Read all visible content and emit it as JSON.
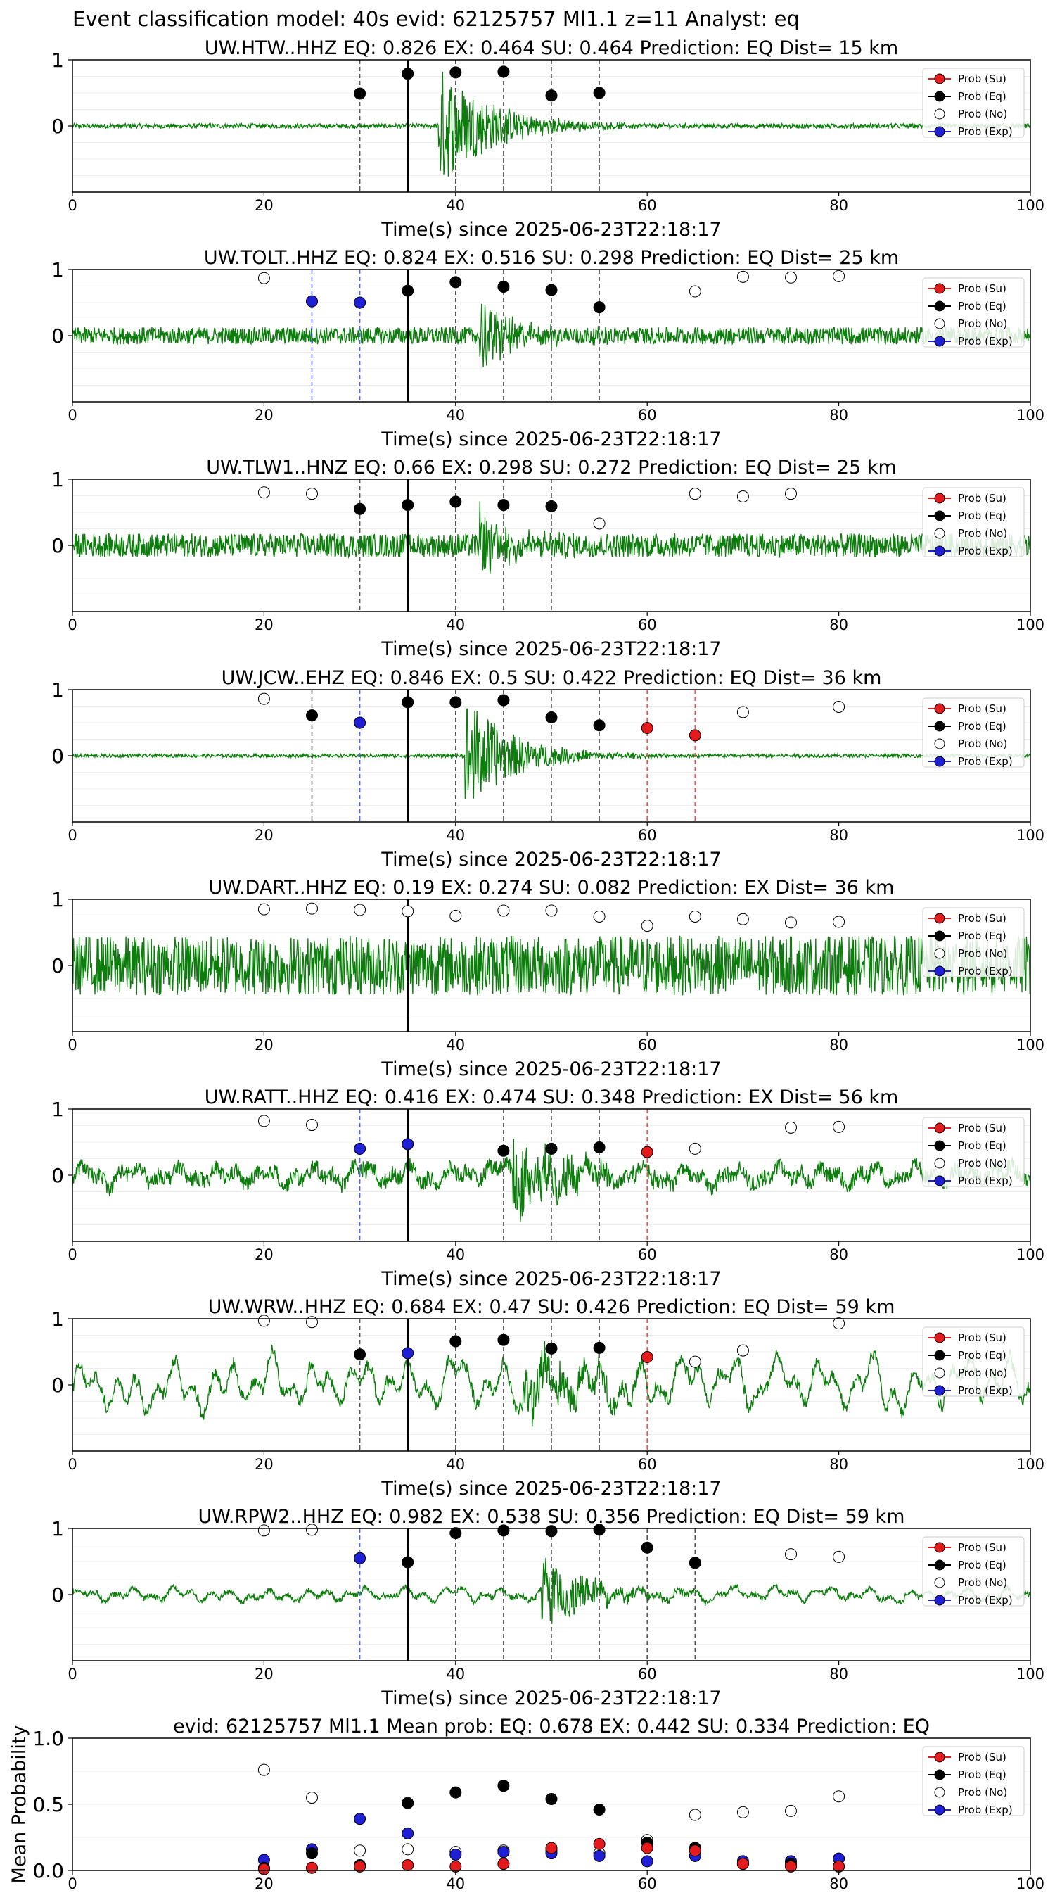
{
  "figure": {
    "suptitle": "Event classification model: 40s evid: 62125757 Ml1.1 z=11 Analyst: eq"
  },
  "legend": {
    "entries": [
      {
        "label": "Prob (Su)",
        "marker_color": "#e41a1c",
        "line": true
      },
      {
        "label": "Prob (Eq)",
        "marker_color": "#000000",
        "line": true
      },
      {
        "label": "Prob (No)",
        "marker_color": "#ffffff",
        "line": false
      },
      {
        "label": "Prob (Exp)",
        "marker_color": "#1f1fd6",
        "line": true
      }
    ]
  },
  "colors": {
    "waveform": "#0a7d0a",
    "su": "#e41a1c",
    "eq": "#000000",
    "no": "#ffffff",
    "exp": "#1f1fd6",
    "pick_line": "#000000"
  },
  "chart_data": [
    {
      "type": "line",
      "title": "UW.HTW..HHZ   EQ: 0.826  EX: 0.464  SU: 0.464   Prediction: EQ    Dist= 15 km",
      "xlabel": "Time(s) since 2025-06-23T22:18:17",
      "ylabel": "",
      "xlim": [
        0,
        100
      ],
      "ylim": [
        -1,
        1
      ],
      "xticks": [
        "0",
        "20",
        "40",
        "60",
        "80",
        "100"
      ],
      "yticks": [
        "1",
        "0"
      ],
      "grid": true,
      "legend_position": "top-right",
      "pick_time": 35,
      "waveform": {
        "noise": 0.035,
        "burst_start": 38.2,
        "burst_amp": 0.95,
        "burst_decay": 5.5,
        "lowfreq": 0,
        "style": "spike"
      },
      "series": [
        {
          "name": "Prob (Su)",
          "x": [],
          "y": []
        },
        {
          "name": "Prob (Eq)",
          "x": [
            30,
            35,
            40,
            45,
            50,
            55
          ],
          "y": [
            0.49,
            0.79,
            0.81,
            0.82,
            0.46,
            0.5
          ]
        },
        {
          "name": "Prob (No)",
          "x": [],
          "y": []
        },
        {
          "name": "Prob (Exp)",
          "x": [],
          "y": []
        }
      ]
    },
    {
      "type": "line",
      "title": "UW.TOLT..HHZ   EQ: 0.824  EX: 0.516  SU: 0.298   Prediction: EQ    Dist= 25 km",
      "xlabel": "Time(s) since 2025-06-23T22:18:17",
      "ylabel": "",
      "xlim": [
        0,
        100
      ],
      "ylim": [
        -1,
        1
      ],
      "xticks": [
        "0",
        "20",
        "40",
        "60",
        "80",
        "100"
      ],
      "yticks": [
        "1",
        "0"
      ],
      "grid": true,
      "legend_position": "top-right",
      "pick_time": 35,
      "waveform": {
        "noise": 0.13,
        "burst_start": 42.5,
        "burst_amp": 0.5,
        "burst_decay": 4,
        "lowfreq": 0,
        "style": "noisy"
      },
      "series": [
        {
          "name": "Prob (Su)",
          "x": [],
          "y": []
        },
        {
          "name": "Prob (Eq)",
          "x": [
            35,
            40,
            45,
            50,
            55
          ],
          "y": [
            0.68,
            0.81,
            0.74,
            0.69,
            0.43
          ]
        },
        {
          "name": "Prob (No)",
          "x": [
            20,
            65,
            70,
            75,
            80
          ],
          "y": [
            0.87,
            0.67,
            0.89,
            0.88,
            0.9
          ]
        },
        {
          "name": "Prob (Exp)",
          "x": [
            25,
            30
          ],
          "y": [
            0.52,
            0.5
          ]
        }
      ]
    },
    {
      "type": "line",
      "title": "UW.TLW1..HNZ   EQ: 0.66  EX: 0.298  SU: 0.272   Prediction: EQ    Dist= 25 km",
      "xlabel": "Time(s) since 2025-06-23T22:18:17",
      "ylabel": "",
      "xlim": [
        0,
        100
      ],
      "ylim": [
        -1,
        1
      ],
      "xticks": [
        "0",
        "20",
        "40",
        "60",
        "80",
        "100"
      ],
      "yticks": [
        "1",
        "0"
      ],
      "grid": true,
      "legend_position": "top-right",
      "pick_time": 35,
      "waveform": {
        "noise": 0.18,
        "burst_start": 42.5,
        "burst_amp": 0.55,
        "burst_decay": 3.5,
        "lowfreq": 0,
        "style": "noisy"
      },
      "series": [
        {
          "name": "Prob (Su)",
          "x": [],
          "y": []
        },
        {
          "name": "Prob (Eq)",
          "x": [
            30,
            35,
            40,
            45,
            50
          ],
          "y": [
            0.55,
            0.61,
            0.66,
            0.61,
            0.59
          ]
        },
        {
          "name": "Prob (No)",
          "x": [
            20,
            25,
            55,
            65,
            70,
            75
          ],
          "y": [
            0.8,
            0.78,
            0.33,
            0.78,
            0.74,
            0.78
          ]
        },
        {
          "name": "Prob (Exp)",
          "x": [],
          "y": []
        }
      ]
    },
    {
      "type": "line",
      "title": "UW.JCW..EHZ   EQ: 0.846  EX: 0.5  SU: 0.422   Prediction: EQ    Dist= 36 km",
      "xlabel": "Time(s) since 2025-06-23T22:18:17",
      "ylabel": "",
      "xlim": [
        0,
        100
      ],
      "ylim": [
        -1,
        1
      ],
      "xticks": [
        "0",
        "20",
        "40",
        "60",
        "80",
        "100"
      ],
      "yticks": [
        "1",
        "0"
      ],
      "grid": true,
      "legend_position": "top-right",
      "pick_time": 35,
      "waveform": {
        "noise": 0.025,
        "burst_start": 41,
        "burst_amp": 0.9,
        "burst_decay": 5,
        "lowfreq": 0,
        "style": "spike"
      },
      "series": [
        {
          "name": "Prob (Su)",
          "x": [
            60,
            65
          ],
          "y": [
            0.42,
            0.31
          ]
        },
        {
          "name": "Prob (Eq)",
          "x": [
            25,
            35,
            40,
            45,
            50,
            55
          ],
          "y": [
            0.61,
            0.81,
            0.81,
            0.84,
            0.58,
            0.46
          ]
        },
        {
          "name": "Prob (No)",
          "x": [
            20,
            70,
            80
          ],
          "y": [
            0.86,
            0.66,
            0.74
          ]
        },
        {
          "name": "Prob (Exp)",
          "x": [
            30
          ],
          "y": [
            0.5
          ]
        }
      ]
    },
    {
      "type": "line",
      "title": "UW.DART..HHZ   EQ: 0.19  EX: 0.274  SU: 0.082   Prediction: EX    Dist= 36 km",
      "xlabel": "Time(s) since 2025-06-23T22:18:17",
      "ylabel": "",
      "xlim": [
        0,
        100
      ],
      "ylim": [
        -1,
        1
      ],
      "xticks": [
        "0",
        "20",
        "40",
        "60",
        "80",
        "100"
      ],
      "yticks": [
        "1",
        "0"
      ],
      "grid": true,
      "legend_position": "top-right",
      "pick_time": 35,
      "waveform": {
        "noise": 0.45,
        "burst_start": 200,
        "burst_amp": 0,
        "burst_decay": 1,
        "lowfreq": 0,
        "style": "noisy"
      },
      "series": [
        {
          "name": "Prob (Su)",
          "x": [],
          "y": []
        },
        {
          "name": "Prob (Eq)",
          "x": [],
          "y": []
        },
        {
          "name": "Prob (No)",
          "x": [
            20,
            25,
            30,
            35,
            40,
            45,
            50,
            55,
            60,
            65,
            70,
            75,
            80
          ],
          "y": [
            0.85,
            0.86,
            0.84,
            0.82,
            0.75,
            0.83,
            0.83,
            0.74,
            0.6,
            0.74,
            0.7,
            0.65,
            0.66
          ]
        },
        {
          "name": "Prob (Exp)",
          "x": [],
          "y": []
        }
      ]
    },
    {
      "type": "line",
      "title": "UW.RATT..HHZ   EQ: 0.416  EX: 0.474  SU: 0.348   Prediction: EX    Dist= 56 km",
      "xlabel": "Time(s) since 2025-06-23T22:18:17",
      "ylabel": "",
      "xlim": [
        0,
        100
      ],
      "ylim": [
        -1,
        1
      ],
      "xticks": [
        "0",
        "20",
        "40",
        "60",
        "80",
        "100"
      ],
      "yticks": [
        "1",
        "0"
      ],
      "grid": true,
      "legend_position": "top-right",
      "pick_time": 35,
      "waveform": {
        "noise": 0.12,
        "burst_start": 46,
        "burst_amp": 0.55,
        "burst_decay": 7,
        "lowfreq": 0.22,
        "style": "mixed"
      },
      "series": [
        {
          "name": "Prob (Su)",
          "x": [
            60
          ],
          "y": [
            0.35
          ]
        },
        {
          "name": "Prob (Eq)",
          "x": [
            45,
            50,
            55
          ],
          "y": [
            0.37,
            0.4,
            0.42
          ]
        },
        {
          "name": "Prob (No)",
          "x": [
            20,
            25,
            65,
            75,
            80
          ],
          "y": [
            0.82,
            0.76,
            0.4,
            0.72,
            0.73
          ]
        },
        {
          "name": "Prob (Exp)",
          "x": [
            30,
            35
          ],
          "y": [
            0.4,
            0.47
          ]
        }
      ]
    },
    {
      "type": "line",
      "title": "UW.WRW..HHZ   EQ: 0.684  EX: 0.47  SU: 0.426   Prediction: EQ    Dist= 59 km",
      "xlabel": "Time(s) since 2025-06-23T22:18:17",
      "ylabel": "",
      "xlim": [
        0,
        100
      ],
      "ylim": [
        -1,
        1
      ],
      "xticks": [
        "0",
        "20",
        "40",
        "60",
        "80",
        "100"
      ],
      "yticks": [
        "1",
        "0"
      ],
      "grid": true,
      "legend_position": "top-right",
      "pick_time": 35,
      "waveform": {
        "noise": 0.08,
        "burst_start": 47,
        "burst_amp": 0.4,
        "burst_decay": 8,
        "lowfreq": 0.55,
        "style": "mixed"
      },
      "series": [
        {
          "name": "Prob (Su)",
          "x": [
            60
          ],
          "y": [
            0.42
          ]
        },
        {
          "name": "Prob (Eq)",
          "x": [
            30,
            40,
            45,
            50,
            55
          ],
          "y": [
            0.46,
            0.66,
            0.68,
            0.55,
            0.56
          ]
        },
        {
          "name": "Prob (No)",
          "x": [
            20,
            25,
            65,
            70,
            80
          ],
          "y": [
            0.97,
            0.95,
            0.35,
            0.52,
            0.93
          ]
        },
        {
          "name": "Prob (Exp)",
          "x": [
            35
          ],
          "y": [
            0.48
          ]
        }
      ]
    },
    {
      "type": "line",
      "title": "UW.RPW2..HHZ   EQ: 0.982  EX: 0.538  SU: 0.356   Prediction: EQ    Dist= 59 km",
      "xlabel": "Time(s) since 2025-06-23T22:18:17",
      "ylabel": "",
      "xlim": [
        0,
        100
      ],
      "ylim": [
        -1,
        1
      ],
      "xticks": [
        "0",
        "20",
        "40",
        "60",
        "80",
        "100"
      ],
      "yticks": [
        "1",
        "0"
      ],
      "grid": true,
      "legend_position": "top-right",
      "pick_time": 35,
      "waveform": {
        "noise": 0.04,
        "burst_start": 49,
        "burst_amp": 0.55,
        "burst_decay": 5,
        "lowfreq": 0.16,
        "style": "mixed"
      },
      "series": [
        {
          "name": "Prob (Su)",
          "x": [],
          "y": []
        },
        {
          "name": "Prob (Eq)",
          "x": [
            35,
            40,
            45,
            50,
            55,
            60,
            65
          ],
          "y": [
            0.49,
            0.93,
            0.97,
            0.96,
            0.98,
            0.71,
            0.48
          ]
        },
        {
          "name": "Prob (No)",
          "x": [
            20,
            25,
            75,
            80
          ],
          "y": [
            0.97,
            0.98,
            0.61,
            0.57
          ]
        },
        {
          "name": "Prob (Exp)",
          "x": [
            30
          ],
          "y": [
            0.55
          ]
        }
      ]
    },
    {
      "type": "scatter",
      "title": "evid: 62125757  Ml1.1   Mean prob:   EQ: 0.678  EX: 0.442  SU: 0.334   Prediction: EQ",
      "xlabel": "",
      "ylabel": "Mean Probability",
      "xlim": [
        0,
        100
      ],
      "ylim": [
        0,
        1
      ],
      "xticks": [
        "0",
        "20",
        "40",
        "60",
        "80",
        "100"
      ],
      "yticks": [
        "0.0",
        "0.5",
        "1.0"
      ],
      "grid": true,
      "legend_position": "top-right",
      "x": [
        20,
        25,
        30,
        35,
        40,
        45,
        50,
        55,
        60,
        65,
        70,
        75,
        80
      ],
      "series": [
        {
          "name": "Prob (No)",
          "values": [
            0.76,
            0.55,
            0.15,
            0.16,
            0.14,
            0.15,
            0.15,
            0.13,
            0.23,
            0.42,
            0.44,
            0.45,
            0.56
          ]
        },
        {
          "name": "Prob (Exp)",
          "values": [
            0.08,
            0.16,
            0.39,
            0.28,
            0.12,
            0.14,
            0.13,
            0.11,
            0.07,
            0.11,
            0.07,
            0.07,
            0.09
          ]
        },
        {
          "name": "Prob (Eq)",
          "values": [
            0.02,
            0.13,
            0.04,
            0.51,
            0.59,
            0.64,
            0.54,
            0.46,
            0.21,
            0.17,
            0.05,
            0.05,
            0.03
          ]
        },
        {
          "name": "Prob (Su)",
          "values": [
            0.01,
            0.02,
            0.03,
            0.04,
            0.03,
            0.05,
            0.17,
            0.2,
            0.17,
            0.15,
            0.05,
            0.03,
            0.03
          ]
        }
      ]
    }
  ]
}
